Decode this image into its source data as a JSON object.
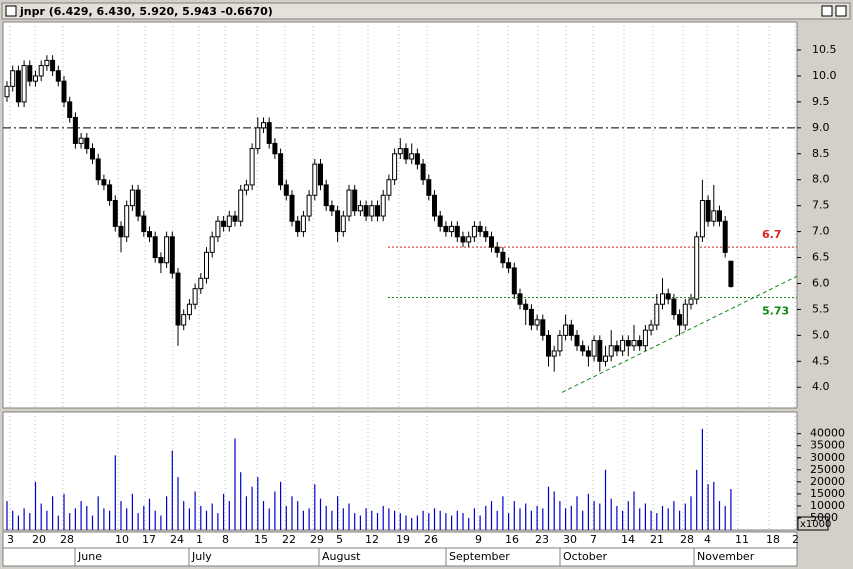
{
  "chart_data": {
    "type": "candlestick",
    "title": "jnpr (6.429, 6.430, 5.920, 5.943 -0.6670)",
    "up_color": "#ffffff",
    "down_color": "#000000",
    "open": [
      9.6,
      9.8,
      10.1,
      9.5,
      10.2,
      9.9,
      10.0,
      10.2,
      10.3,
      10.1,
      9.9,
      9.5,
      9.2,
      8.7,
      8.8,
      8.6,
      8.4,
      8.0,
      7.9,
      7.6,
      7.1,
      6.9,
      7.5,
      7.8,
      7.3,
      7.0,
      6.9,
      6.5,
      6.4,
      6.9,
      6.2,
      5.2,
      5.4,
      5.6,
      5.9,
      6.1,
      6.6,
      6.9,
      7.2,
      7.1,
      7.3,
      7.2,
      7.8,
      7.9,
      8.6,
      9.0,
      9.1,
      8.7,
      8.5,
      7.9,
      7.7,
      7.2,
      7.0,
      7.3,
      7.7,
      8.3,
      7.9,
      7.5,
      7.4,
      7.0,
      7.3,
      7.8,
      7.4,
      7.5,
      7.3,
      7.5,
      7.3,
      7.7,
      8.0,
      8.5,
      8.6,
      8.4,
      8.5,
      8.3,
      8.0,
      7.7,
      7.3,
      7.1,
      7.0,
      7.1,
      6.9,
      6.8,
      6.9,
      7.1,
      7.0,
      6.9,
      6.7,
      6.6,
      6.4,
      6.3,
      5.8,
      5.6,
      5.5,
      5.2,
      5.3,
      5.0,
      4.6,
      4.7,
      5.0,
      5.2,
      5.0,
      4.8,
      4.7,
      4.6,
      4.9,
      4.5,
      4.6,
      4.8,
      4.7,
      4.9,
      4.8,
      4.9,
      4.8,
      5.1,
      5.2,
      5.6,
      5.8,
      5.7,
      5.4,
      5.2,
      5.6,
      5.7,
      6.9,
      7.6,
      7.2,
      7.4,
      7.2,
      6.429
    ],
    "high": [
      9.9,
      10.2,
      10.2,
      10.3,
      10.3,
      10.1,
      10.3,
      10.4,
      10.4,
      10.2,
      10.0,
      9.6,
      9.3,
      8.9,
      8.9,
      8.7,
      8.5,
      8.1,
      8.0,
      7.7,
      7.2,
      7.6,
      7.9,
      7.9,
      7.4,
      7.1,
      7.0,
      6.6,
      7.0,
      7.0,
      6.3,
      5.5,
      5.7,
      6.0,
      6.2,
      6.7,
      7.0,
      7.3,
      7.3,
      7.4,
      7.4,
      7.9,
      8.0,
      8.7,
      9.2,
      9.2,
      9.2,
      8.8,
      8.6,
      8.0,
      7.8,
      7.3,
      7.4,
      7.8,
      8.4,
      8.4,
      8.0,
      7.6,
      7.5,
      7.4,
      7.9,
      7.9,
      7.6,
      7.6,
      7.6,
      7.6,
      7.8,
      8.1,
      8.6,
      8.8,
      8.7,
      8.7,
      8.6,
      8.4,
      8.1,
      7.8,
      7.4,
      7.2,
      7.2,
      7.2,
      7.0,
      7.0,
      7.2,
      7.2,
      7.1,
      7.0,
      6.8,
      6.7,
      6.5,
      6.4,
      5.9,
      5.7,
      5.6,
      5.4,
      5.4,
      5.1,
      4.8,
      5.1,
      5.4,
      5.3,
      5.1,
      4.9,
      4.8,
      5.0,
      5.0,
      4.8,
      5.1,
      4.9,
      5.0,
      5.0,
      5.2,
      5.0,
      5.2,
      5.3,
      5.8,
      6.1,
      5.9,
      5.8,
      5.5,
      5.7,
      5.8,
      7.0,
      8.0,
      7.7,
      7.9,
      7.5,
      7.3,
      6.43
    ],
    "low": [
      9.5,
      9.7,
      9.4,
      9.4,
      9.8,
      9.8,
      9.9,
      10.1,
      10.0,
      9.8,
      9.4,
      9.1,
      8.6,
      8.6,
      8.5,
      8.3,
      7.9,
      7.8,
      7.5,
      7.0,
      6.6,
      6.8,
      7.4,
      7.2,
      6.9,
      6.8,
      6.4,
      6.2,
      6.3,
      6.1,
      4.8,
      5.1,
      5.3,
      5.5,
      5.8,
      6.0,
      6.5,
      6.8,
      7.0,
      7.0,
      7.1,
      7.1,
      7.7,
      7.8,
      8.5,
      8.9,
      8.6,
      8.4,
      7.8,
      7.6,
      7.1,
      6.9,
      6.9,
      7.2,
      7.6,
      7.8,
      7.4,
      7.3,
      6.8,
      6.9,
      7.2,
      7.3,
      7.3,
      7.2,
      7.2,
      7.2,
      7.2,
      7.6,
      7.9,
      8.4,
      8.3,
      8.3,
      8.2,
      7.9,
      7.6,
      7.2,
      7.0,
      6.9,
      6.9,
      6.8,
      6.7,
      6.7,
      6.8,
      6.9,
      6.8,
      6.6,
      6.5,
      6.3,
      6.2,
      5.7,
      5.5,
      5.2,
      5.1,
      5.1,
      4.9,
      4.4,
      4.3,
      4.6,
      4.9,
      4.9,
      4.7,
      4.6,
      4.4,
      4.5,
      4.3,
      4.4,
      4.5,
      4.6,
      4.6,
      4.6,
      4.7,
      4.7,
      4.7,
      5.0,
      5.1,
      5.5,
      5.6,
      5.3,
      5.0,
      5.1,
      5.5,
      5.6,
      6.8,
      7.1,
      7.1,
      7.1,
      6.5,
      5.92
    ],
    "close": [
      9.8,
      10.1,
      9.5,
      10.2,
      9.9,
      10.0,
      10.2,
      10.3,
      10.1,
      9.9,
      9.5,
      9.2,
      8.7,
      8.8,
      8.6,
      8.4,
      8.0,
      7.9,
      7.6,
      7.1,
      6.9,
      7.5,
      7.8,
      7.3,
      7.0,
      6.9,
      6.5,
      6.4,
      6.9,
      6.2,
      5.2,
      5.4,
      5.6,
      5.9,
      6.1,
      6.6,
      6.9,
      7.2,
      7.1,
      7.3,
      7.2,
      7.8,
      7.9,
      8.6,
      9.0,
      9.1,
      8.7,
      8.5,
      7.9,
      7.7,
      7.2,
      7.0,
      7.3,
      7.7,
      8.3,
      7.9,
      7.5,
      7.4,
      7.0,
      7.3,
      7.8,
      7.4,
      7.5,
      7.3,
      7.5,
      7.3,
      7.7,
      8.0,
      8.5,
      8.6,
      8.4,
      8.5,
      8.3,
      8.0,
      7.7,
      7.3,
      7.1,
      7.0,
      7.1,
      6.9,
      6.8,
      6.9,
      7.1,
      7.0,
      6.9,
      6.7,
      6.6,
      6.4,
      6.3,
      5.8,
      5.6,
      5.5,
      5.2,
      5.3,
      5.0,
      4.6,
      4.7,
      5.0,
      5.2,
      5.0,
      4.8,
      4.7,
      4.6,
      4.9,
      4.5,
      4.6,
      4.8,
      4.7,
      4.9,
      4.8,
      4.9,
      4.8,
      5.1,
      5.2,
      5.6,
      5.8,
      5.7,
      5.4,
      5.2,
      5.6,
      5.7,
      6.9,
      7.6,
      7.2,
      7.4,
      7.2,
      6.6,
      5.943
    ],
    "ylim": [
      3.6,
      11.04
    ],
    "yticks": [
      {
        "value": 4,
        "label": "4.0"
      },
      4.5,
      {
        "value": 5,
        "label": "5.0"
      },
      5.5,
      {
        "value": 6,
        "label": "6.0"
      },
      6.5,
      {
        "value": 7,
        "label": "7.0"
      },
      7.5,
      {
        "value": 8,
        "label": "8.0"
      },
      8.5,
      {
        "value": 9,
        "label": "9.0"
      },
      9.5,
      {
        "value": 10,
        "label": "10.0"
      },
      10.5
    ],
    "grid": true,
    "hline": {
      "value": 9,
      "color": "#000000"
    },
    "levels": [
      {
        "value": 6.7,
        "color": "#dd2222"
      },
      {
        "value": 5.73,
        "color": "#118811"
      }
    ],
    "trendline": {
      "values": [
        3.9,
        6.14
      ],
      "color": "#118811"
    },
    "volume": {
      "color": "#0000cc",
      "ylim": [
        0,
        49000
      ],
      "yticks": [
        5000,
        10000,
        15000,
        20000,
        25000,
        30000,
        35000,
        40000
      ],
      "unit_label": "x1000",
      "values": [
        12000,
        8000,
        6000,
        9000,
        7000,
        20000,
        11000,
        8000,
        14000,
        6000,
        15000,
        7000,
        9000,
        12000,
        10000,
        6000,
        14000,
        9000,
        8000,
        31000,
        12000,
        9000,
        15000,
        7000,
        10000,
        13000,
        8000,
        6000,
        14000,
        33000,
        22000,
        12000,
        9000,
        16000,
        10000,
        8000,
        11000,
        7000,
        15000,
        12000,
        38000,
        24000,
        14000,
        18000,
        22000,
        12000,
        9000,
        16000,
        20000,
        10000,
        14000,
        12000,
        8000,
        9000,
        19000,
        13000,
        10000,
        8000,
        14000,
        9000,
        11000,
        7000,
        6000,
        9000,
        8000,
        7000,
        10000,
        9000,
        8000,
        7000,
        6000,
        5000,
        6000,
        8000,
        7000,
        9000,
        8000,
        7000,
        6000,
        8000,
        7000,
        5000,
        9000,
        6000,
        10000,
        12000,
        8000,
        14000,
        7000,
        12000,
        9000,
        11000,
        8000,
        10000,
        9000,
        18000,
        16000,
        12000,
        9000,
        10000,
        14000,
        8000,
        15000,
        12000,
        11000,
        25000,
        13000,
        10000,
        8000,
        12000,
        16000,
        9000,
        11000,
        8000,
        7000,
        10000,
        9000,
        12000,
        8000,
        11000,
        14000,
        25000,
        42000,
        19000,
        20000,
        12000,
        10000,
        17000
      ]
    },
    "date_labels": [
      "3",
      "20",
      "28",
      "10",
      "17",
      "24",
      "1",
      "8",
      "15",
      "22",
      "29",
      "5",
      "12",
      "19",
      "26",
      "9",
      "16",
      "23",
      "30",
      "7",
      "14",
      "21",
      "28",
      "4",
      "11",
      "18",
      "2"
    ],
    "months": [
      "June",
      "July",
      "August",
      "September",
      "October",
      "November"
    ]
  }
}
